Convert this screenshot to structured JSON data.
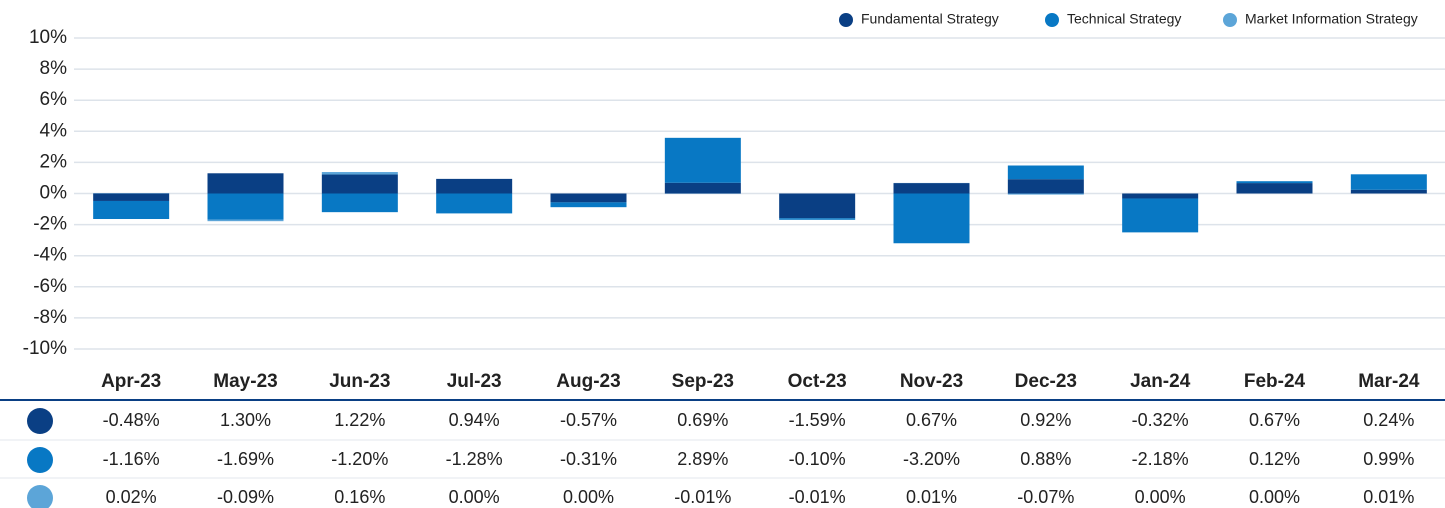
{
  "chart_data": {
    "type": "bar",
    "stacked": true,
    "categories": [
      "Apr-23",
      "May-23",
      "Jun-23",
      "Jul-23",
      "Aug-23",
      "Sep-23",
      "Oct-23",
      "Nov-23",
      "Dec-23",
      "Jan-24",
      "Feb-24",
      "Mar-24"
    ],
    "series": [
      {
        "name": "Fundamental Strategy",
        "color": "#0a3f84",
        "values": [
          -0.48,
          1.3,
          1.22,
          0.94,
          -0.57,
          0.69,
          -1.59,
          0.67,
          0.92,
          -0.32,
          0.67,
          0.24
        ],
        "value_labels": [
          "-0.48%",
          "1.30%",
          "1.22%",
          "0.94%",
          "-0.57%",
          "0.69%",
          "-1.59%",
          "0.67%",
          "0.92%",
          "-0.32%",
          "0.67%",
          "0.24%"
        ]
      },
      {
        "name": "Technical Strategy",
        "color": "#0878c4",
        "values": [
          -1.16,
          -1.69,
          -1.2,
          -1.28,
          -0.31,
          2.89,
          -0.1,
          -3.2,
          0.88,
          -2.18,
          0.12,
          0.99
        ],
        "value_labels": [
          "-1.16%",
          "-1.69%",
          "-1.20%",
          "-1.28%",
          "-0.31%",
          "2.89%",
          "-0.10%",
          "-3.20%",
          "0.88%",
          "-2.18%",
          "0.12%",
          "0.99%"
        ]
      },
      {
        "name": "Market Information Strategy",
        "color": "#5ca5d8",
        "values": [
          0.02,
          -0.09,
          0.16,
          0.0,
          0.0,
          -0.01,
          -0.01,
          0.01,
          -0.07,
          0.0,
          0.0,
          0.01
        ],
        "value_labels": [
          "0.02%",
          "-0.09%",
          "0.16%",
          "0.00%",
          "0.00%",
          "-0.01%",
          "-0.01%",
          "0.01%",
          "-0.07%",
          "0.00%",
          "0.00%",
          "0.01%"
        ]
      }
    ],
    "ylim": [
      -10,
      10
    ],
    "yticks": [
      {
        "value": 10,
        "label": "10%"
      },
      {
        "value": 8,
        "label": "8%"
      },
      {
        "value": 6,
        "label": "6%"
      },
      {
        "value": 4,
        "label": "4%"
      },
      {
        "value": 2,
        "label": "2%"
      },
      {
        "value": 0,
        "label": "0%"
      },
      {
        "value": -2,
        "label": "-2%"
      },
      {
        "value": -4,
        "label": "-4%"
      },
      {
        "value": -6,
        "label": "-6%"
      },
      {
        "value": -8,
        "label": "-8%"
      },
      {
        "value": -10,
        "label": "-10%"
      }
    ],
    "grid": true,
    "legend": "top-right"
  }
}
